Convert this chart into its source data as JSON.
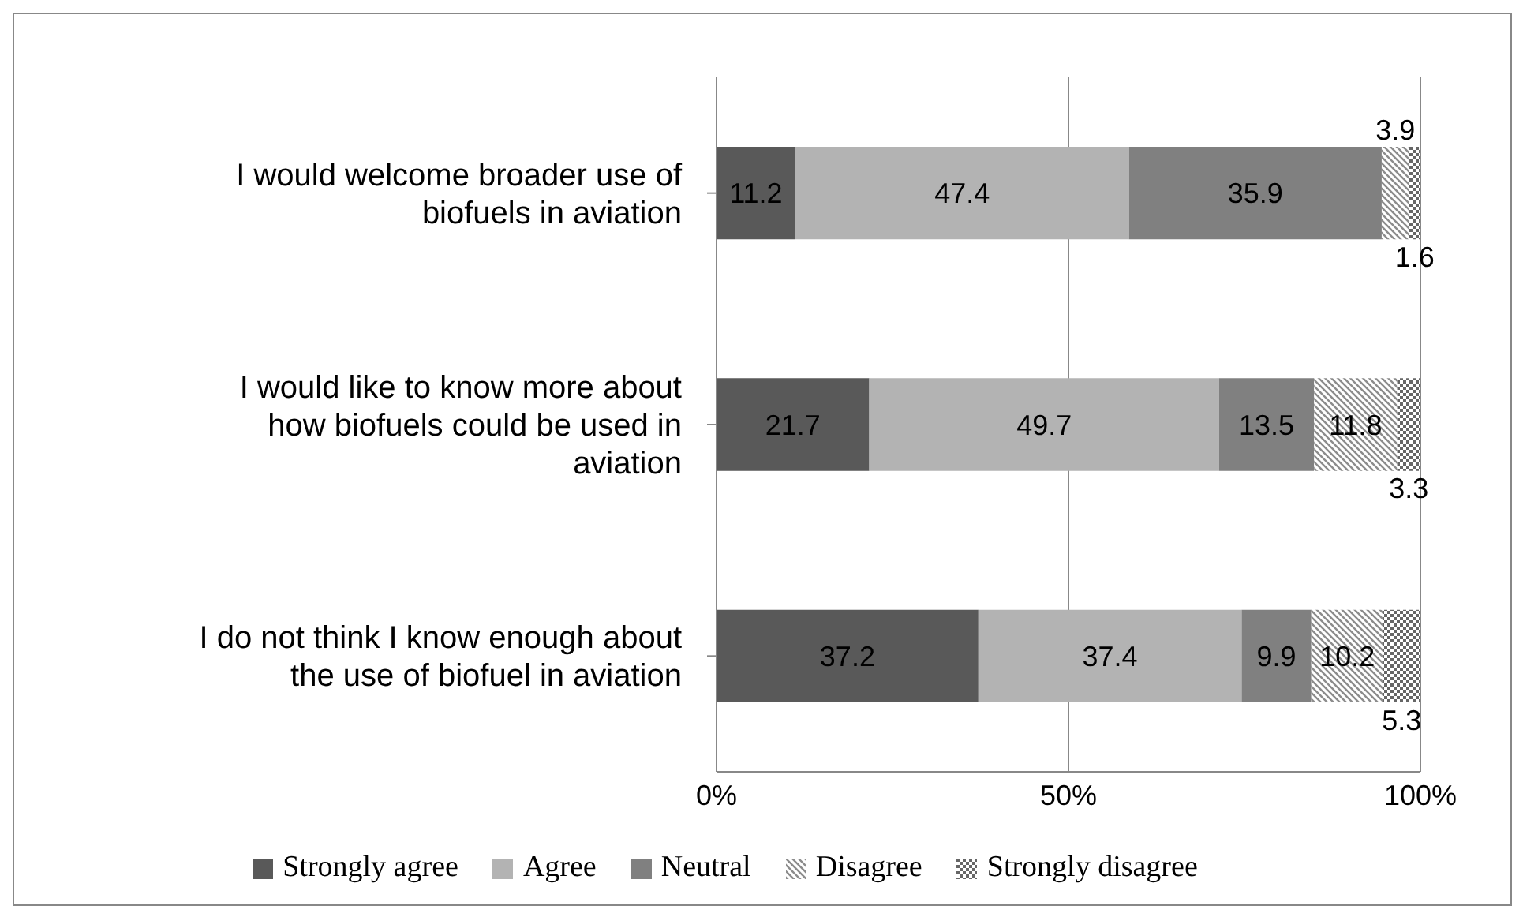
{
  "chart_data": {
    "type": "bar",
    "orientation": "horizontal",
    "stacked": true,
    "categories": [
      "I would welcome broader use of biofuels in aviation",
      "I would like to know more about how biofuels could be used in aviation",
      "I do not think I know enough about the use of biofuel in aviation"
    ],
    "series": [
      {
        "name": "Strongly agree",
        "color": "#595959",
        "values": [
          11.2,
          21.7,
          37.2
        ]
      },
      {
        "name": "Agree",
        "color": "#b3b3b3",
        "values": [
          47.4,
          49.7,
          37.4
        ]
      },
      {
        "name": "Neutral",
        "color": "#808080",
        "values": [
          35.9,
          13.5,
          9.9
        ]
      },
      {
        "name": "Disagree",
        "color": "#8c8c8c",
        "values": [
          3.9,
          11.8,
          10.2
        ]
      },
      {
        "name": "Strongly disagree",
        "color": "#666666",
        "values": [
          1.6,
          3.3,
          5.3
        ]
      }
    ],
    "xlim": [
      0,
      100
    ],
    "xticks": [
      {
        "value": 0,
        "label": "0%"
      },
      {
        "value": 50,
        "label": "50%"
      },
      {
        "value": 100,
        "label": "100%"
      }
    ],
    "grid": "x",
    "legend": "bottom",
    "data_labels": true
  }
}
